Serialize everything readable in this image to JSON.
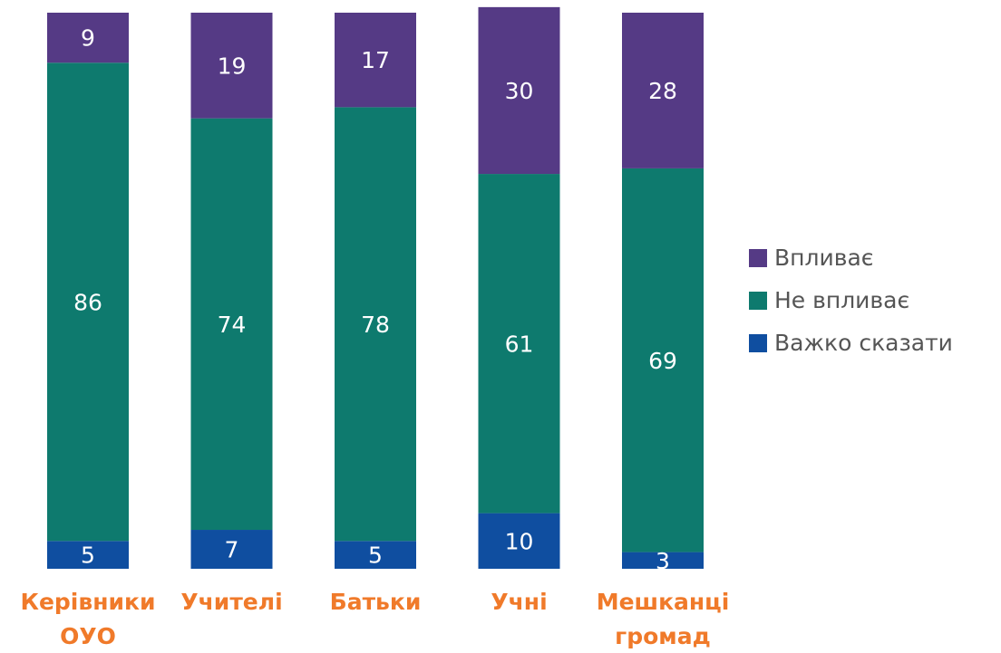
{
  "chart_data": {
    "type": "stacked_bar",
    "categories": [
      "Керівники\nОУО",
      "Учителі",
      "Батьки",
      "Учні",
      "Мешканці\nгромад"
    ],
    "series": [
      {
        "name": "Впливає",
        "color": "#553a85",
        "values": [
          9,
          19,
          17,
          30,
          28
        ]
      },
      {
        "name": "Не впливає",
        "color": "#0e7a6e",
        "values": [
          86,
          74,
          78,
          61,
          69
        ]
      },
      {
        "name": "Важко сказати",
        "color": "#0f4ea0",
        "values": [
          5,
          7,
          5,
          10,
          3
        ]
      }
    ],
    "ylim": [
      0,
      100
    ],
    "legend": "right"
  }
}
